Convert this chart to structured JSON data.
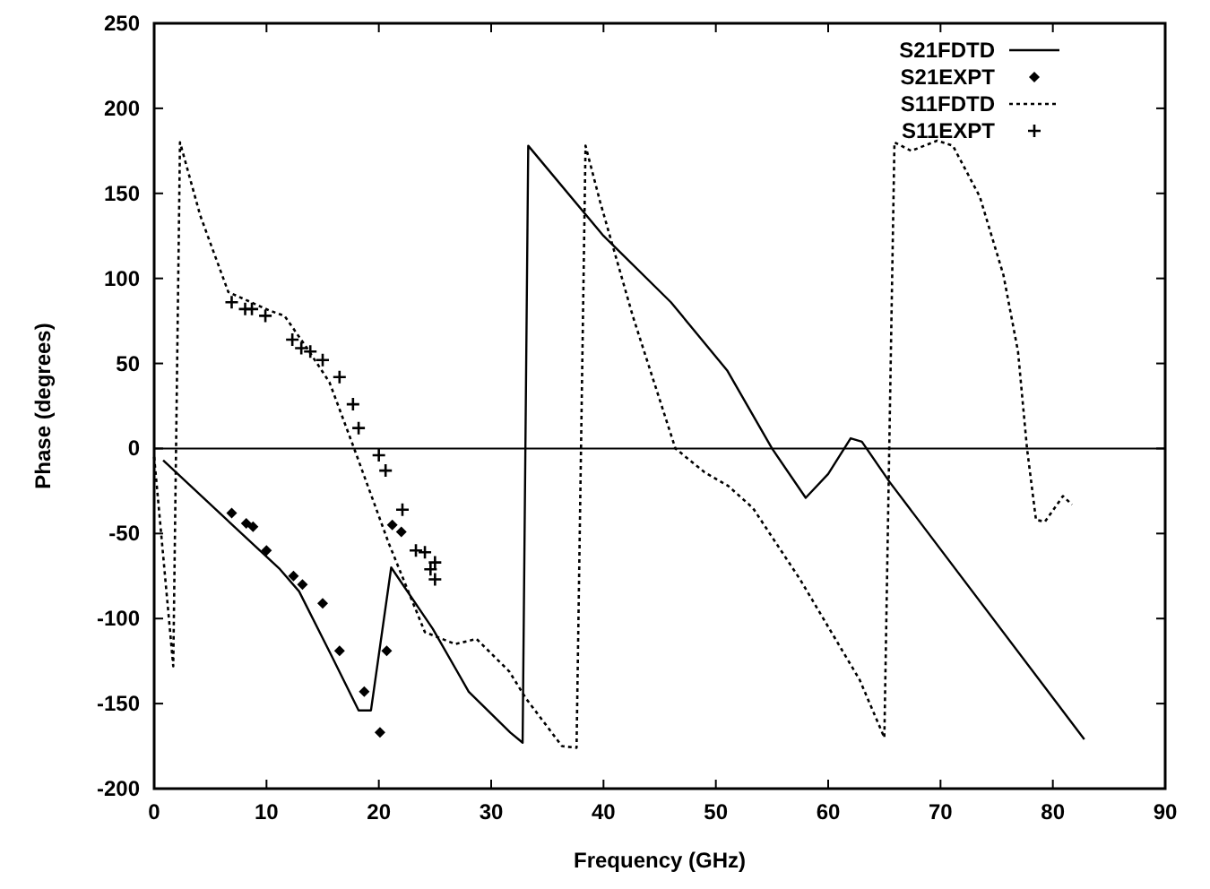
{
  "chart_data": {
    "type": "line",
    "xlabel": "Frequency (GHz)",
    "ylabel": "Phase (degrees)",
    "xlim": [
      0,
      90
    ],
    "ylim": [
      -200,
      250
    ],
    "xticks": [
      0,
      10,
      20,
      30,
      40,
      50,
      60,
      70,
      80,
      90
    ],
    "yticks": [
      -200,
      -150,
      -100,
      -50,
      0,
      50,
      100,
      150,
      200,
      250
    ],
    "grid": false,
    "legend": "top right",
    "ref_lines": [
      {
        "axis": "y",
        "value": 0,
        "color": "#000000",
        "line_style": "solid"
      }
    ],
    "series": [
      {
        "name": "S21FDTD",
        "color": "#000000",
        "line_style": "solid",
        "marker": "none",
        "x": [
          0.8,
          11.2,
          12.9,
          15.8,
          18.2,
          19.3,
          21.1,
          24.8,
          28,
          31.7,
          32.8,
          33.3,
          40,
          46,
          51,
          55,
          58,
          60,
          62,
          63,
          65.5,
          82.8
        ],
        "values": [
          -7,
          -71,
          -84,
          -122,
          -154,
          -154,
          -70,
          -106,
          -143,
          -167,
          -173,
          178,
          125,
          86,
          46,
          0,
          -29,
          -15,
          6,
          4,
          -20,
          -171
        ]
      },
      {
        "name": "S21EXPT",
        "type": "scatter",
        "color": "#000000",
        "marker": "diamond",
        "x": [
          6.9,
          8.2,
          8.8,
          10,
          12.4,
          13.2,
          15,
          16.5,
          18.7,
          20.1,
          20.7,
          21.2,
          22
        ],
        "values": [
          -38,
          -44,
          -46,
          -60,
          -75,
          -80,
          -91,
          -119,
          -143,
          -167,
          -119,
          -45,
          -49
        ]
      },
      {
        "name": "S11FDTD",
        "color": "#000000",
        "line_style": "dotted",
        "marker": "none",
        "x": [
          0,
          1.7,
          2.3,
          4.1,
          6.6,
          10.3,
          11.6,
          13.5,
          15.6,
          17.8,
          20.9,
          24.1,
          26.8,
          28.7,
          31.6,
          33.1,
          36.3,
          37.6,
          38.4,
          39.7,
          42.6,
          46.4,
          49,
          51.1,
          53.3,
          57.5,
          62.8,
          65,
          65.9,
          67.4,
          69.7,
          71.1,
          73.5,
          75.6,
          76.9,
          77.7,
          78.5,
          79.3,
          80.9,
          81.7
        ],
        "values": [
          -5,
          -128,
          180,
          137,
          92,
          81,
          78,
          60,
          39,
          0,
          -56,
          -108,
          -115,
          -112,
          -131,
          -147,
          -175,
          -176,
          178,
          145,
          78,
          0,
          -14,
          -22,
          -35,
          -77,
          -136,
          -170,
          180,
          175,
          181,
          178,
          148,
          102,
          57,
          0,
          -42,
          -43,
          -28,
          -33
        ]
      },
      {
        "name": "S11EXPT",
        "type": "scatter",
        "color": "#000000",
        "marker": "cross",
        "x": [
          6.9,
          8.1,
          8.7,
          9.9,
          12.3,
          13.1,
          13.9,
          15,
          16.5,
          17.7,
          18.2,
          20,
          20.6,
          22.1,
          23.3,
          24.1,
          25,
          24.6,
          25
        ],
        "values": [
          86,
          82,
          82,
          78,
          64,
          59,
          57,
          52,
          42,
          26,
          12,
          -4,
          -13,
          -36,
          -60,
          -61,
          -67,
          -71,
          -77
        ]
      }
    ]
  }
}
